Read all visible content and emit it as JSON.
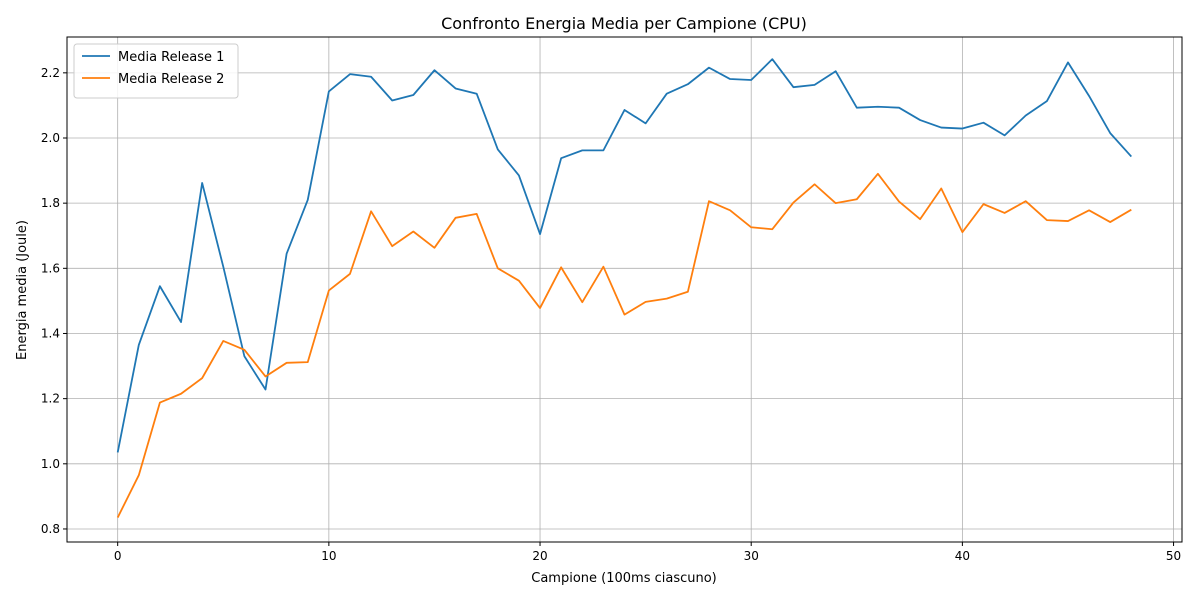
{
  "chart_data": {
    "type": "line",
    "title": "Confronto Energia Media per Campione (CPU)",
    "xlabel": "Campione (100ms ciascuno)",
    "ylabel": "Energia media (Joule)",
    "xlim": [
      -2.4,
      50.4
    ],
    "ylim": [
      0.76,
      2.31
    ],
    "xticks": [
      0,
      10,
      20,
      30,
      40,
      50
    ],
    "yticks": [
      0.8,
      1.0,
      1.2,
      1.4,
      1.6,
      1.8,
      2.0,
      2.2
    ],
    "grid": true,
    "legend_position": "top-left",
    "x": [
      0,
      1,
      2,
      3,
      4,
      5,
      6,
      7,
      8,
      9,
      10,
      11,
      12,
      13,
      14,
      15,
      16,
      17,
      18,
      19,
      20,
      21,
      22,
      23,
      24,
      25,
      26,
      27,
      28,
      29,
      30,
      31,
      32,
      33,
      34,
      35,
      36,
      37,
      38,
      39,
      40,
      41,
      42,
      43,
      44,
      45,
      46,
      47,
      48
    ],
    "series": [
      {
        "name": "Media Release 1",
        "color": "#1f77b4",
        "values": [
          1.035,
          1.365,
          1.545,
          1.435,
          1.862,
          1.605,
          1.33,
          1.228,
          1.645,
          1.81,
          2.143,
          2.196,
          2.188,
          2.115,
          2.132,
          2.208,
          2.152,
          2.136,
          1.965,
          1.885,
          1.705,
          1.938,
          1.962,
          1.962,
          2.086,
          2.045,
          2.136,
          2.165,
          2.216,
          2.181,
          2.178,
          2.242,
          2.156,
          2.163,
          2.205,
          2.093,
          2.096,
          2.093,
          2.055,
          2.032,
          2.029,
          2.047,
          2.008,
          2.069,
          2.113,
          2.232,
          2.129,
          2.015,
          1.943
        ]
      },
      {
        "name": "Media Release 2",
        "color": "#ff7f0e",
        "values": [
          0.835,
          0.965,
          1.188,
          1.215,
          1.263,
          1.377,
          1.35,
          1.268,
          1.31,
          1.312,
          1.532,
          1.583,
          1.775,
          1.668,
          1.713,
          1.663,
          1.755,
          1.767,
          1.6,
          1.562,
          1.478,
          1.603,
          1.496,
          1.605,
          1.458,
          1.497,
          1.507,
          1.528,
          1.806,
          1.778,
          1.726,
          1.72,
          1.802,
          1.858,
          1.8,
          1.812,
          1.89,
          1.805,
          1.751,
          1.845,
          1.711,
          1.797,
          1.77,
          1.806,
          1.748,
          1.745,
          1.778,
          1.742,
          1.78
        ]
      }
    ]
  }
}
